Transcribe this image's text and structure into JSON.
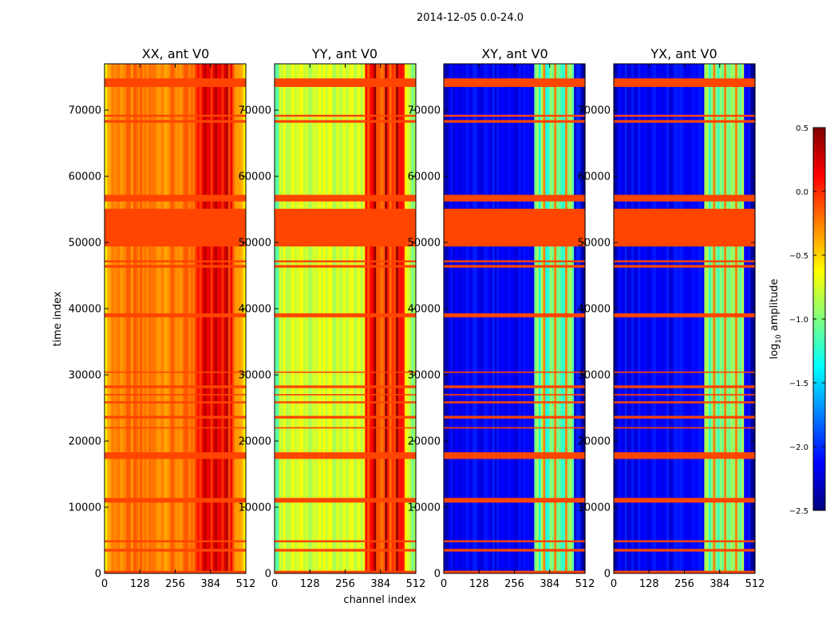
{
  "chart_data": {
    "type": "heatmap",
    "suptitle": "2014-12-05 0.0-24.0",
    "xlabel": "channel index",
    "ylabel": "time index",
    "x_ticks": [
      0,
      128,
      256,
      384,
      512
    ],
    "y_ticks": [
      0,
      10000,
      20000,
      30000,
      40000,
      50000,
      60000,
      70000
    ],
    "xlim": [
      0,
      512
    ],
    "ylim": [
      0,
      77000
    ],
    "flagged_rows": [
      {
        "t0": 0,
        "t1": 400
      },
      {
        "t0": 3300,
        "t1": 3700
      },
      {
        "t0": 4700,
        "t1": 5000
      },
      {
        "t0": 10700,
        "t1": 11400
      },
      {
        "t0": 17300,
        "t1": 18300
      },
      {
        "t0": 21900,
        "t1": 22100
      },
      {
        "t0": 23400,
        "t1": 23800
      },
      {
        "t0": 25700,
        "t1": 26000
      },
      {
        "t0": 26900,
        "t1": 27100
      },
      {
        "t0": 28000,
        "t1": 28400
      },
      {
        "t0": 30300,
        "t1": 30500
      },
      {
        "t0": 38700,
        "t1": 39300
      },
      {
        "t0": 46200,
        "t1": 46600
      },
      {
        "t0": 47000,
        "t1": 47300
      },
      {
        "t0": 49400,
        "t1": 55100
      },
      {
        "t0": 56200,
        "t1": 57200
      },
      {
        "t0": 68100,
        "t1": 68500
      },
      {
        "t0": 69000,
        "t1": 69300
      },
      {
        "t0": 73500,
        "t1": 74800
      }
    ],
    "panels": [
      {
        "title": "XX, ant V0",
        "base_log_amp": -0.25,
        "band_log_amp": 0.05,
        "band_channels": [
          330,
          470
        ],
        "hot_channels_log_amp": 0.35
      },
      {
        "title": "YY, ant V0",
        "base_log_amp": -0.75,
        "band_log_amp": -0.05,
        "band_channels": [
          330,
          470
        ],
        "hot_channels_log_amp": 0.45
      },
      {
        "title": "XY, ant V0",
        "base_log_amp": -2.15,
        "band_log_amp": -1.1,
        "band_channels": [
          325,
          475
        ],
        "hot_channels_log_amp": -0.25
      },
      {
        "title": "YX, ant V0",
        "base_log_amp": -2.15,
        "band_log_amp": -1.1,
        "band_channels": [
          325,
          475
        ],
        "hot_channels_log_amp": -0.25
      }
    ],
    "colorbar": {
      "label": "log10 amplitude",
      "label_main": "log",
      "label_sub": "10",
      "label_rest": " amplitude",
      "ticks": [
        0.5,
        0.0,
        -0.5,
        -1.0,
        -1.5,
        -2.0,
        -2.5
      ],
      "tick_labels": [
        "0.5",
        "0.0",
        "−0.5",
        "−1.0",
        "−1.5",
        "−2.0",
        "−2.5"
      ],
      "vmin": -2.5,
      "vmax": 0.5,
      "colormap": "jet",
      "flag_color": "#ff4500"
    }
  }
}
